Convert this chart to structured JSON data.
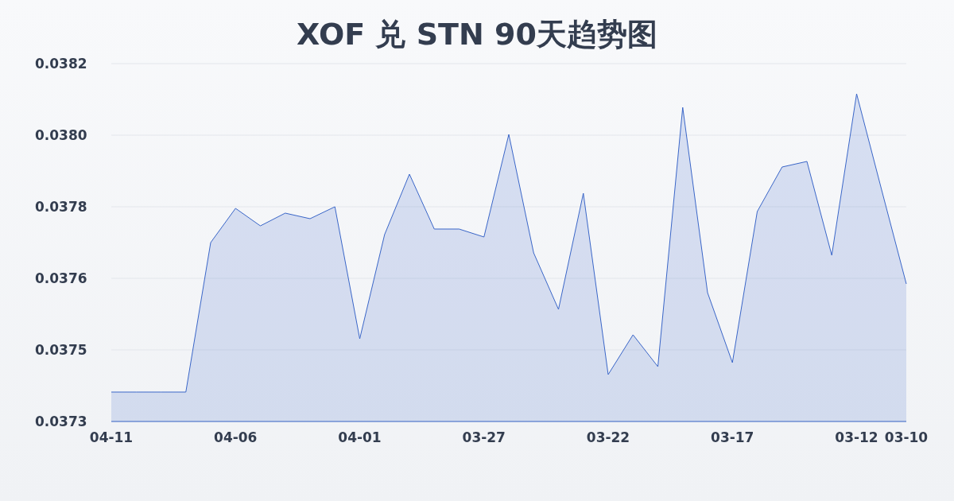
{
  "chart_data": {
    "type": "area",
    "title": "XOF 兑 STN 90天趋势图",
    "categories": [
      "04-11",
      null,
      null,
      null,
      null,
      "04-06",
      null,
      null,
      null,
      null,
      "04-01",
      null,
      null,
      null,
      null,
      "03-27",
      null,
      null,
      null,
      null,
      "03-22",
      null,
      null,
      null,
      null,
      "03-17",
      null,
      null,
      null,
      null,
      "03-12",
      null,
      "03-10"
    ],
    "series": [
      {
        "color": "#3a66c8",
        "values": [
          0.037354,
          0.037354,
          0.037354,
          0.037354,
          0.03773,
          0.037816,
          0.037772,
          0.037804,
          0.03779,
          0.03782,
          0.037488,
          0.03775,
          0.037902,
          0.037764,
          0.037764,
          0.037744,
          0.038002,
          0.037704,
          0.037562,
          0.037854,
          0.037398,
          0.037498,
          0.037418,
          0.03807,
          0.037604,
          0.037428,
          0.037808,
          0.03792,
          0.037934,
          0.037698,
          0.038104,
          0.037864,
          0.037626
        ]
      }
    ],
    "ylim": [
      0.03728,
      0.03818
    ],
    "yticks": [
      {
        "value": 0.03728,
        "label": "0.0373"
      },
      {
        "value": 0.03746,
        "label": "0.0375"
      },
      {
        "value": 0.03764,
        "label": "0.0376"
      },
      {
        "value": 0.03782,
        "label": "0.0378"
      },
      {
        "value": 0.038,
        "label": "0.0380"
      },
      {
        "value": 0.03818,
        "label": "0.0382"
      }
    ],
    "grid": "y"
  }
}
